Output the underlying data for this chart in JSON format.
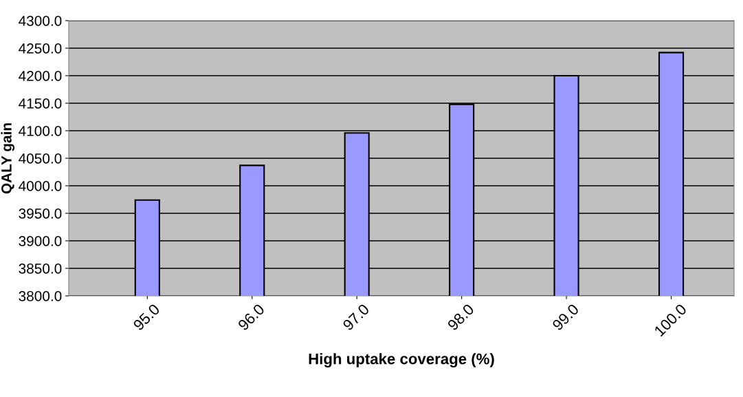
{
  "chart_data": {
    "type": "bar",
    "xlabel": "High uptake coverage (%)",
    "ylabel": "QALY gain",
    "categories": [
      "95.0",
      "96.0",
      "97.0",
      "98.0",
      "99.0",
      "100.0"
    ],
    "values": [
      3974,
      4037,
      4096,
      4148,
      4200,
      4242
    ],
    "color": "#9999ff",
    "ylim": [
      3800,
      4300
    ],
    "yticks": [
      {
        "value": 3800,
        "label": "3800.0"
      },
      {
        "value": 3850,
        "label": "3850.0"
      },
      {
        "value": 3900,
        "label": "3900.0"
      },
      {
        "value": 3950,
        "label": "3950.0"
      },
      {
        "value": 4000,
        "label": "4000.0"
      },
      {
        "value": 4050,
        "label": "4050.0"
      },
      {
        "value": 4100,
        "label": "4100.0"
      },
      {
        "value": 4150,
        "label": "4150.0"
      },
      {
        "value": 4200,
        "label": "4200.0"
      },
      {
        "value": 4250,
        "label": "4250.0"
      },
      {
        "value": 4300,
        "label": "4300.0"
      }
    ],
    "grid": "y"
  }
}
